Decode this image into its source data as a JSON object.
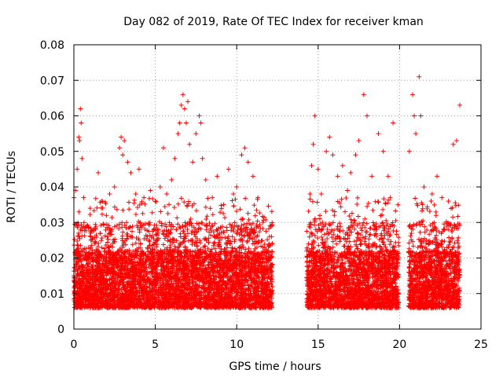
{
  "chart_data": {
    "type": "scatter",
    "title": "Day 082 of 2019, Rate Of TEC Index for receiver kman",
    "xlabel": "GPS time / hours",
    "ylabel": "ROTI / TECUs",
    "xlim": [
      0,
      25
    ],
    "ylim": [
      0,
      0.08
    ],
    "x_ticks": [
      0,
      5,
      10,
      15,
      20,
      25
    ],
    "x_tick_labels": [
      "0",
      "5",
      "10",
      "15",
      "20",
      "25"
    ],
    "y_ticks": [
      0,
      0.01,
      0.02,
      0.03,
      0.04,
      0.05,
      0.06,
      0.07,
      0.08
    ],
    "y_tick_labels": [
      "0",
      "0.01",
      "0.02",
      "0.03",
      "0.04",
      "0.05",
      "0.06",
      "0.07",
      "0.08"
    ],
    "grid": true,
    "marker": "plus",
    "series_color": "#ff0000",
    "observation_windows": [
      [
        0,
        12.2
      ],
      [
        14.3,
        19.95
      ],
      [
        20.55,
        23.7
      ]
    ],
    "series": [
      {
        "name": "ROTI",
        "points": [
          [
            0.0,
            0.015
          ],
          [
            0.1,
            0.039
          ],
          [
            0.2,
            0.045
          ],
          [
            0.3,
            0.054
          ],
          [
            0.35,
            0.053
          ],
          [
            0.4,
            0.062
          ],
          [
            0.45,
            0.058
          ],
          [
            0.5,
            0.048
          ],
          [
            0.6,
            0.037
          ],
          [
            0.8,
            0.029
          ],
          [
            1.0,
            0.034
          ],
          [
            1.2,
            0.028
          ],
          [
            1.5,
            0.044
          ],
          [
            1.7,
            0.036
          ],
          [
            2.0,
            0.032
          ],
          [
            2.2,
            0.038
          ],
          [
            2.5,
            0.04
          ],
          [
            2.8,
            0.051
          ],
          [
            2.9,
            0.054
          ],
          [
            3.0,
            0.049
          ],
          [
            3.1,
            0.053
          ],
          [
            3.3,
            0.047
          ],
          [
            3.5,
            0.044
          ],
          [
            3.8,
            0.038
          ],
          [
            4.0,
            0.045
          ],
          [
            4.3,
            0.037
          ],
          [
            4.7,
            0.039
          ],
          [
            5.0,
            0.036
          ],
          [
            5.3,
            0.04
          ],
          [
            5.5,
            0.051
          ],
          [
            5.7,
            0.038
          ],
          [
            6.0,
            0.042
          ],
          [
            6.2,
            0.048
          ],
          [
            6.4,
            0.055
          ],
          [
            6.5,
            0.058
          ],
          [
            6.6,
            0.063
          ],
          [
            6.7,
            0.066
          ],
          [
            6.8,
            0.062
          ],
          [
            6.9,
            0.058
          ],
          [
            7.0,
            0.064
          ],
          [
            7.1,
            0.052
          ],
          [
            7.3,
            0.047
          ],
          [
            7.5,
            0.055
          ],
          [
            7.7,
            0.06
          ],
          [
            7.8,
            0.058
          ],
          [
            7.9,
            0.048
          ],
          [
            8.1,
            0.042
          ],
          [
            8.5,
            0.037
          ],
          [
            8.8,
            0.043
          ],
          [
            9.2,
            0.035
          ],
          [
            9.5,
            0.045
          ],
          [
            9.8,
            0.038
          ],
          [
            10.0,
            0.04
          ],
          [
            10.3,
            0.049
          ],
          [
            10.5,
            0.051
          ],
          [
            10.7,
            0.047
          ],
          [
            11.0,
            0.043
          ],
          [
            11.3,
            0.037
          ],
          [
            11.6,
            0.03
          ],
          [
            12.0,
            0.024
          ],
          [
            14.3,
            0.022
          ],
          [
            14.5,
            0.038
          ],
          [
            14.6,
            0.046
          ],
          [
            14.7,
            0.052
          ],
          [
            14.8,
            0.06
          ],
          [
            15.0,
            0.045
          ],
          [
            15.2,
            0.038
          ],
          [
            15.5,
            0.05
          ],
          [
            15.7,
            0.054
          ],
          [
            15.9,
            0.049
          ],
          [
            16.2,
            0.043
          ],
          [
            16.5,
            0.046
          ],
          [
            16.8,
            0.039
          ],
          [
            17.0,
            0.044
          ],
          [
            17.3,
            0.049
          ],
          [
            17.5,
            0.053
          ],
          [
            17.8,
            0.066
          ],
          [
            18.0,
            0.06
          ],
          [
            18.3,
            0.043
          ],
          [
            18.7,
            0.055
          ],
          [
            19.0,
            0.05
          ],
          [
            19.3,
            0.043
          ],
          [
            19.6,
            0.058
          ],
          [
            19.9,
            0.035
          ],
          [
            20.6,
            0.05
          ],
          [
            20.8,
            0.066
          ],
          [
            20.9,
            0.06
          ],
          [
            21.0,
            0.055
          ],
          [
            21.2,
            0.071
          ],
          [
            21.3,
            0.06
          ],
          [
            21.5,
            0.04
          ],
          [
            22.0,
            0.038
          ],
          [
            22.3,
            0.043
          ],
          [
            22.6,
            0.037
          ],
          [
            23.0,
            0.036
          ],
          [
            23.3,
            0.052
          ],
          [
            23.5,
            0.053
          ],
          [
            23.7,
            0.063
          ]
        ]
      }
    ]
  }
}
